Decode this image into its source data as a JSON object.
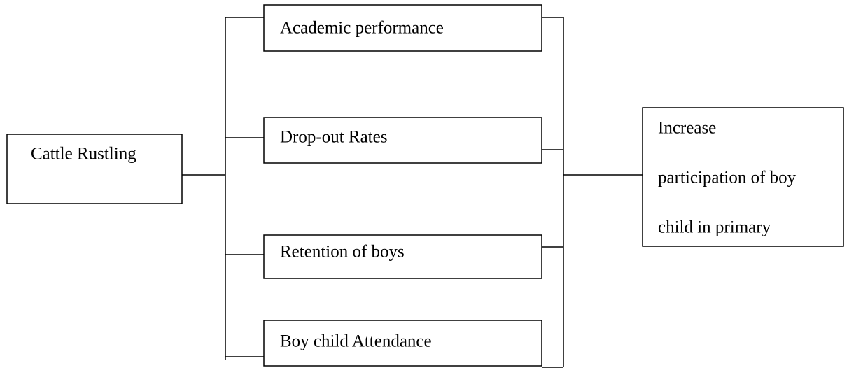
{
  "nodes": [
    {
      "label": "Cattle Rustling"
    },
    {
      "label": "Academic performance"
    },
    {
      "label": "Drop-out Rates"
    },
    {
      "label": "Retention of boys"
    },
    {
      "label": "Boy child Attendance"
    },
    {
      "lines": [
        "Increase",
        "participation of boy",
        "child in primary"
      ]
    }
  ]
}
